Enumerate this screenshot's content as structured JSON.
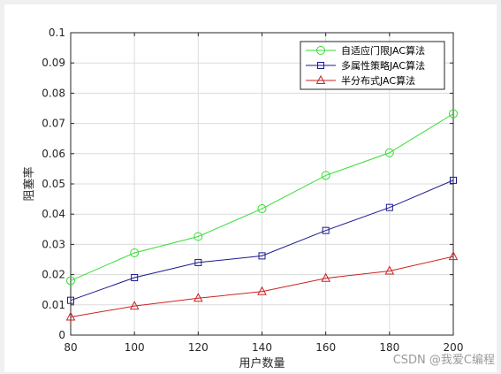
{
  "chart_data": {
    "type": "line",
    "title": "",
    "xlabel": "用户数量",
    "ylabel": "阻塞率",
    "x": [
      80,
      100,
      120,
      140,
      160,
      180,
      200
    ],
    "xlim": [
      80,
      200
    ],
    "ylim": [
      0,
      0.1
    ],
    "xticks": [
      80,
      100,
      120,
      140,
      160,
      180,
      200
    ],
    "yticks": [
      0,
      0.01,
      0.02,
      0.03,
      0.04,
      0.05,
      0.06,
      0.07,
      0.08,
      0.09,
      0.1
    ],
    "ytick_labels": [
      "0",
      "0.01",
      "0.02",
      "0.03",
      "0.04",
      "0.05",
      "0.06",
      "0.07",
      "0.08",
      "0.09",
      "0.1"
    ],
    "grid": true,
    "legend_position": "top-right",
    "series": [
      {
        "name": "自适应门限JAC算法",
        "marker": "circle",
        "color": "#33dd33",
        "values": [
          0.018,
          0.0272,
          0.0326,
          0.0418,
          0.0528,
          0.0603,
          0.0732
        ]
      },
      {
        "name": "多属性策略JAC算法",
        "marker": "square",
        "color": "#1a1a8c",
        "values": [
          0.0115,
          0.019,
          0.024,
          0.0262,
          0.0346,
          0.0422,
          0.0512
        ]
      },
      {
        "name": "半分布式JAC算法",
        "marker": "triangle",
        "color": "#cc2222",
        "values": [
          0.006,
          0.0096,
          0.0122,
          0.0144,
          0.0188,
          0.0212,
          0.026
        ]
      }
    ]
  },
  "watermark": "CSDN @我爱C编程"
}
